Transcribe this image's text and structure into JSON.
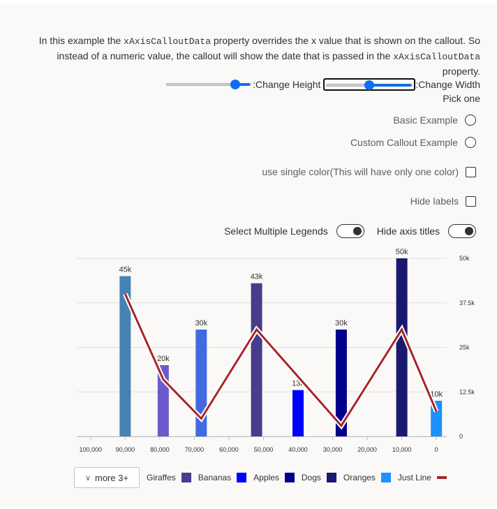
{
  "description": {
    "before": "In this example the ",
    "code1": "xAxisCalloutData",
    "middle": " property overrides the x value that is shown on the callout. So instead of a numeric value, the callout will show the date that is passed in the ",
    "code2": "xAxisCalloutData",
    "after": " property."
  },
  "controls": {
    "height_label": ":Change Height",
    "width_label": ":Change Width",
    "height_slider_value": 0.85,
    "width_slider_value": 0.5,
    "pick_one": "Pick one",
    "radio_basic": "Basic Example",
    "radio_custom": "Custom Callout Example",
    "checkbox_single_color": "use single color(This will have only one color)",
    "checkbox_hide_labels": "Hide labels",
    "toggle_multiple_legends": "Select Multiple Legends",
    "toggle_hide_axis_titles": "Hide axis titles"
  },
  "legend": {
    "more_label": "more 3+",
    "items": [
      {
        "name": "Giraffes",
        "color": "#483d8b",
        "shape": "box"
      },
      {
        "name": "Bananas",
        "color": "#0000ff",
        "shape": "box"
      },
      {
        "name": "Apples",
        "color": "#00008b",
        "shape": "box"
      },
      {
        "name": "Dogs",
        "color": "#191970",
        "shape": "box"
      },
      {
        "name": "Oranges",
        "color": "#1e90ff",
        "shape": "box"
      },
      {
        "name": "Just Line",
        "color": "#a4262c",
        "shape": "line"
      }
    ]
  },
  "chart_data": {
    "type": "bar",
    "x_ticks": [
      100000,
      90000,
      80000,
      70000,
      60000,
      50000,
      40000,
      30000,
      20000,
      10000,
      0
    ],
    "x_tick_labels": [
      "100,000",
      "90,000",
      "80,000",
      "70,000",
      "60,000",
      "50,000",
      "40,000",
      "30,000",
      "20,000",
      "10,000",
      "0"
    ],
    "y_ticks": [
      0,
      12500,
      25000,
      37500,
      50000
    ],
    "y_tick_labels": [
      "0",
      "12.5k",
      "25k",
      "37.5k",
      "50k"
    ],
    "xlim": [
      104000,
      -3000
    ],
    "ylim": [
      0,
      50000
    ],
    "y_axis_position": "right",
    "grid": true,
    "bars": [
      {
        "x": 90000,
        "y": 45000,
        "label": "45k",
        "color": "#4682b4"
      },
      {
        "x": 79000,
        "y": 20000,
        "label": "20k",
        "color": "#6a5acd"
      },
      {
        "x": 68000,
        "y": 30000,
        "label": "30k",
        "color": "#4169e1"
      },
      {
        "x": 52000,
        "y": 43000,
        "label": "43k",
        "color": "#483d8b"
      },
      {
        "x": 40000,
        "y": 13000,
        "label": "13k",
        "color": "#0000ff"
      },
      {
        "x": 27500,
        "y": 30000,
        "label": "30k",
        "color": "#00008b"
      },
      {
        "x": 10000,
        "y": 50000,
        "label": "50k",
        "color": "#191970"
      },
      {
        "x": 0,
        "y": 10000,
        "label": "10k",
        "color": "#1e90ff"
      }
    ],
    "line": {
      "name": "Just Line",
      "color": "#a4262c",
      "points": [
        {
          "x": 90000,
          "y": 40000
        },
        {
          "x": 79000,
          "y": 16000
        },
        {
          "x": 68000,
          "y": 5000
        },
        {
          "x": 52000,
          "y": 30000
        },
        {
          "x": 27500,
          "y": 3000
        },
        {
          "x": 10000,
          "y": 30000
        },
        {
          "x": 0,
          "y": 7000
        }
      ]
    }
  }
}
